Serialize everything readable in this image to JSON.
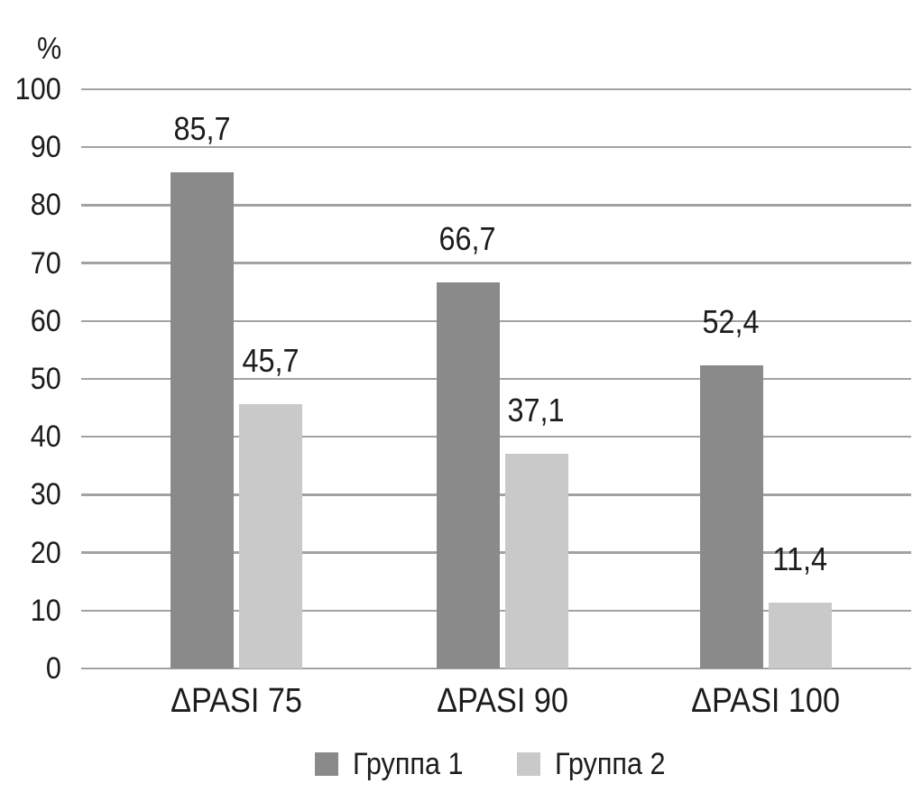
{
  "chart_data": {
    "type": "bar",
    "title": "",
    "ylabel": "%",
    "categories": [
      "ΔPASI 75",
      "ΔPASI 90",
      "ΔPASI 100"
    ],
    "series": [
      {
        "name": "Группа 1",
        "color": "#8a8a8a",
        "values": [
          85.7,
          66.7,
          52.4
        ],
        "value_labels": [
          "85,7",
          "66,7",
          "52,4"
        ]
      },
      {
        "name": "Группа 2",
        "color": "#c9c9c9",
        "values": [
          45.7,
          37.1,
          11.4
        ],
        "value_labels": [
          "45,7",
          "37,1",
          "11,4"
        ]
      }
    ],
    "y_axis": {
      "min": 0,
      "max": 100,
      "step": 10,
      "tick_labels": [
        "0",
        "10",
        "20",
        "30",
        "40",
        "50",
        "60",
        "70",
        "80",
        "90",
        "100"
      ]
    },
    "grid": true,
    "gridline_color": "#a2a2a2",
    "text_color": "#1c1c1c",
    "legend_position": "bottom"
  }
}
